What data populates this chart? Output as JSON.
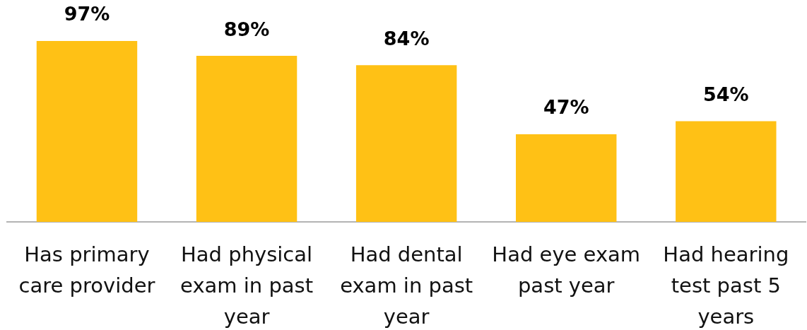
{
  "chart_data": {
    "type": "bar",
    "categories": [
      "Has primary care provider",
      "Had physical exam in past year",
      "Had dental exam in past year",
      "Had eye exam past year",
      "Had hearing test past 5 years"
    ],
    "values": [
      97,
      89,
      84,
      47,
      54
    ],
    "color": "#ffc115",
    "value_labels": [
      "97%",
      "89%",
      "84%",
      "47%",
      "54%"
    ]
  }
}
